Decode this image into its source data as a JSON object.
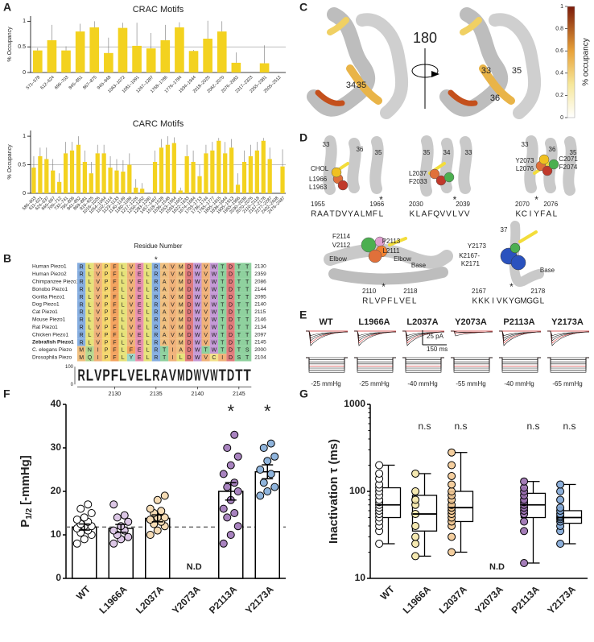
{
  "panel_labels": [
    "A",
    "B",
    "C",
    "D",
    "E",
    "F",
    "G"
  ],
  "chart_data": [
    {
      "type": "bar",
      "title": "CRAC Motifs",
      "y_label": "% Occupancy",
      "categories": [
        "571–578",
        "612–624",
        "696–703",
        "845–851",
        "867–875",
        "940–948",
        "1063–1072",
        "1081–1091",
        "1267–1287",
        "1768–1786",
        "1776–1784",
        "1934–1944",
        "2018–2025",
        "2062–2070",
        "2076–2082",
        "2317–2323",
        "2355–2381",
        "2505–2512"
      ],
      "values": [
        0.43,
        0.63,
        0.43,
        0.8,
        0.88,
        0.38,
        0.87,
        0.52,
        0.47,
        0.63,
        0.88,
        0.42,
        0.66,
        0.8,
        0.19,
        0,
        0.18,
        0
      ],
      "errors": [
        0.05,
        0.3,
        0.08,
        0.15,
        0.12,
        0.3,
        0.1,
        0.45,
        0.3,
        0.3,
        0.1,
        0.02,
        0.35,
        0.2,
        0.2,
        0,
        0.35,
        0
      ],
      "color": "#f3d21f",
      "ylim": [
        0,
        1.1
      ],
      "yticks": [
        0,
        0.5,
        1
      ],
      "ref_line": 0.5
    },
    {
      "type": "bar",
      "title": "CARC Motifs",
      "y_label": "% Occupancy",
      "x_label": "Residue Number",
      "categories": [
        "586–603",
        "611–621",
        "624–637",
        "660–667",
        "700–712",
        "732–741",
        "795–806",
        "841–852",
        "869–881",
        "916–925",
        "1016–1026",
        "1054–1064",
        "1102–1114",
        "1123–1133",
        "1140–1149",
        "1180–1189",
        "1217–1226",
        "1250–1262",
        "1283–1290",
        "1457–1467",
        "1518–1528",
        "1536–1548",
        "1553–1564",
        "1593–1601",
        "1622–1633",
        "1674–1684",
        "1703–1713",
        "1736–1744",
        "1765–1777",
        "1805–1815",
        "1836–1844",
        "1905–1913",
        "1955–1966",
        "2030–2039",
        "2070–2076",
        "2110–2118",
        "2167–2178",
        "2277–2287",
        "2402–2408",
        "2476–2487"
      ],
      "values": [
        0.45,
        0.65,
        0.6,
        0.4,
        0.2,
        0.7,
        0.75,
        0.85,
        0.55,
        0.35,
        0.7,
        0.7,
        0.45,
        0.4,
        0.38,
        0.5,
        0.1,
        0.08,
        0,
        0.55,
        0.8,
        0.85,
        0.88,
        0.05,
        0.65,
        0.55,
        0.3,
        0.7,
        0.75,
        0.92,
        0.7,
        0.8,
        0.15,
        0.55,
        0.65,
        0.75,
        0.92,
        0.6,
        0,
        0.47
      ],
      "errors": [
        0.2,
        0.15,
        0.2,
        0.2,
        0.15,
        0.2,
        0.15,
        0.15,
        0.2,
        0.2,
        0.15,
        0.15,
        0.2,
        0.2,
        0.2,
        0.2,
        0.15,
        0.1,
        0,
        0.2,
        0.15,
        0.15,
        0.1,
        0.05,
        0.2,
        0.2,
        0.2,
        0.15,
        0.15,
        0.05,
        0.2,
        0.15,
        0.2,
        0.2,
        0.2,
        0.15,
        0.05,
        0.2,
        0,
        0.3
      ],
      "color": "#f3d21f",
      "ylim": [
        0,
        1.1
      ],
      "yticks": [
        0,
        0.5,
        1
      ],
      "ref_line": 0.5
    },
    {
      "type": "bar_points",
      "y_label_parts": [
        "P",
        "1/2",
        "[-mmHg]"
      ],
      "categories": [
        "WT",
        "L1966A",
        "L2037A",
        "Y2073A",
        "P2113A",
        "Y2173A"
      ],
      "values": [
        11.8,
        11.5,
        13.8,
        null,
        20,
        24.5
      ],
      "errors": [
        0.7,
        0.9,
        0.8,
        null,
        2,
        1.6
      ],
      "points": [
        [
          8,
          9,
          10,
          10.5,
          11,
          11.5,
          12,
          12,
          12.5,
          13,
          13.5,
          14,
          15,
          16,
          17
        ],
        [
          8,
          9,
          9.5,
          10,
          11,
          11,
          12,
          13,
          14,
          14.5,
          17
        ],
        [
          10,
          11,
          12,
          12.5,
          13,
          13.5,
          14,
          14,
          15,
          15.5,
          16,
          18,
          19
        ],
        null,
        [
          8,
          10,
          12,
          14,
          15,
          16,
          18,
          20,
          21,
          22,
          24,
          26,
          28,
          30,
          33
        ],
        [
          19,
          20,
          21,
          22,
          24,
          25,
          27,
          28,
          30,
          31
        ]
      ],
      "colors": [
        "#ffffff",
        "#dcc7e6",
        "#f6dcb5",
        null,
        "#a883bf",
        "#8fb4dc"
      ],
      "ylim": [
        0,
        40
      ],
      "yticks": [
        0,
        10,
        20,
        30,
        40
      ],
      "ref_line": 11.8,
      "annotations": [
        null,
        null,
        null,
        "N.D",
        "*",
        "*"
      ]
    },
    {
      "type": "box",
      "y_label": "Inactivation τ (ms)",
      "log": true,
      "categories": [
        "WT",
        "L1966A",
        "L2037A",
        "Y2073A",
        "P2113A",
        "Y2173A"
      ],
      "boxes": [
        {
          "min": 25,
          "q1": 50,
          "median": 70,
          "q3": 110,
          "max": 200
        },
        {
          "min": 18,
          "q1": 35,
          "median": 55,
          "q3": 90,
          "max": 160
        },
        {
          "min": 20,
          "q1": 45,
          "median": 65,
          "q3": 100,
          "max": 280
        },
        null,
        {
          "min": 15,
          "q1": 50,
          "median": 70,
          "q3": 95,
          "max": 130
        },
        {
          "min": 25,
          "q1": 43,
          "median": 50,
          "q3": 60,
          "max": 120
        }
      ],
      "points": [
        [
          25,
          35,
          40,
          45,
          50,
          55,
          60,
          65,
          70,
          75,
          80,
          90,
          100,
          110,
          120,
          140,
          160,
          200
        ],
        [
          18,
          25,
          30,
          40,
          55,
          70,
          80,
          100,
          160
        ],
        [
          20,
          30,
          40,
          45,
          50,
          55,
          60,
          65,
          70,
          80,
          90,
          100,
          120,
          150,
          200,
          280
        ],
        null,
        [
          15,
          35,
          45,
          55,
          60,
          65,
          70,
          75,
          80,
          90,
          100,
          110,
          130
        ],
        [
          25,
          35,
          40,
          45,
          48,
          50,
          52,
          55,
          60,
          65,
          80,
          100,
          120
        ]
      ],
      "colors": [
        "#ffffff",
        "#f4e7a8",
        "#f3c994",
        null,
        "#9a6fb0",
        "#7fa6d6"
      ],
      "ylim": [
        10,
        1000
      ],
      "yticks": [
        10,
        100,
        1000
      ],
      "annotations": [
        null,
        "n.s",
        "n.s",
        "N.D",
        "n.s",
        "n.s"
      ]
    }
  ],
  "alignment": {
    "marker": "*",
    "marker_column": 9,
    "rows": [
      {
        "species": "Human Piezo1",
        "sequence": "RLVPFLVELRAVMDWVWTDTT",
        "end": 2130
      },
      {
        "species": "Human Piezo2",
        "sequence": "RLVPFLVELRAVMDWVWTDTT",
        "end": 2359
      },
      {
        "species": "Chimpanzee Piezo1",
        "sequence": "RLVPFLVELRAVMDWVWTDTT",
        "end": 2086
      },
      {
        "species": "Bonobo Piezo1",
        "sequence": "RLVPFLVELRAVMDWVWTDTT",
        "end": 2144
      },
      {
        "species": "Gorilla Piezo1",
        "sequence": "RLVPFLVELRAVMDWVWTDTT",
        "end": 2095
      },
      {
        "species": "Dog Piezo1",
        "sequence": "RLVPFLVELRAVMDWVWTDTT",
        "end": 2140
      },
      {
        "species": "Cat Piezo1",
        "sequence": "RLVPFLVELRAVMDWVWTDTT",
        "end": 2115
      },
      {
        "species": "Mouse Piezo1",
        "sequence": "RLVPFLVELRAVMDWVWTDTT",
        "end": 2146
      },
      {
        "species": "Rat Piezo1",
        "sequence": "RLVPFLVELRAVMDWVWTDTT",
        "end": 2134
      },
      {
        "species": "Chicken Piezo1",
        "sequence": "RLVPFLVELRAVMDWVWTDTT",
        "end": 2097
      },
      {
        "species": "Zebrafish Piezo1",
        "sequence": "RLVPFLVELRAVMDWVWTDTT",
        "end": 2145
      },
      {
        "species": "C. elegans Piezo",
        "sequence": "MNIPFLFELRTIADWTWTDTS",
        "end": 2000
      },
      {
        "species": "Drosophila Piezo",
        "sequence": "MQIPFLYELRTILDWVCIDST",
        "end": 2104
      }
    ],
    "logo": "RLVPFLVELRAVMDWVWTDTT",
    "logo_ticks": [
      100,
      0
    ],
    "axis_ticks": [
      2130,
      2135,
      2140,
      2145
    ],
    "residue_colors": {
      "R": "#86aee0",
      "K": "#86aee0",
      "L": "#e6e27a",
      "V": "#f0b27a",
      "I": "#f0b27a",
      "P": "#f5d76e",
      "F": "#f4a460",
      "E": "#e88fb0",
      "D": "#e07b7b",
      "A": "#f0c080",
      "M": "#f0c080",
      "W": "#c59ad6",
      "T": "#8fd19e",
      "S": "#8fd19e",
      "Y": "#9ed6c8",
      "N": "#b5d98f",
      "Q": "#b5d98f",
      "C": "#f3e28a"
    }
  },
  "structure": {
    "rotation_label": "180",
    "colorbar_label": "% occupancy",
    "colorbar_ticks": [
      0,
      0.2,
      0.4,
      0.6,
      0.8,
      1
    ],
    "helix_labels": [
      "34",
      "35",
      "33",
      "35",
      "36"
    ]
  },
  "motifs": {
    "star": "*",
    "items": [
      {
        "labels": [
          "33",
          "36",
          "35",
          "CHOL",
          "L1966",
          "L1963"
        ],
        "start": "1955",
        "end": "1966",
        "sequence": "RAATDVYALMFL",
        "highlight": [
          0,
          6,
          11
        ],
        "star_index": 11
      },
      {
        "labels": [
          "35",
          "34",
          "33",
          "L2037",
          "F2033"
        ],
        "start": "2030",
        "end": "2039",
        "sequence": "KLAFQVVLVV",
        "highlight": [
          0,
          3,
          9
        ],
        "star_index": 7
      },
      {
        "labels": [
          "33",
          "36",
          "35",
          "Y2073",
          "L2076",
          "C2071",
          "F2074"
        ],
        "start": "2070",
        "end": "2076",
        "sequence": "KCIYFAL",
        "highlight": [
          0,
          3,
          6
        ],
        "star_index": 3
      },
      {
        "labels": [
          "P2113",
          "F2114",
          "V2112",
          "L2111",
          "Elbow",
          "Elbow",
          "Base"
        ],
        "start": "2110",
        "end": "2118",
        "sequence": "RLVPFLVEL",
        "highlight": [
          0,
          3,
          8
        ],
        "star_index": 3
      },
      {
        "labels": [
          "37",
          "Y2173",
          "K2167-",
          "K2171",
          "Base"
        ],
        "start": "2167",
        "end": "2178",
        "sequence": "KKKIVKYGMGGL",
        "highlight": [
          0,
          6,
          11
        ],
        "star_index": 6
      }
    ]
  },
  "traces": {
    "headers": [
      "WT",
      "L1966A",
      "L2037A",
      "Y2073A",
      "P2113A",
      "Y2173A"
    ],
    "pressures": [
      "-25 mmHg",
      "-25 mmHg",
      "-40 mmHg",
      "-55 mmHg",
      "-40 mmHg",
      "-65 mmHg"
    ],
    "scale_current": "25 pA",
    "scale_time": "150 ms"
  }
}
